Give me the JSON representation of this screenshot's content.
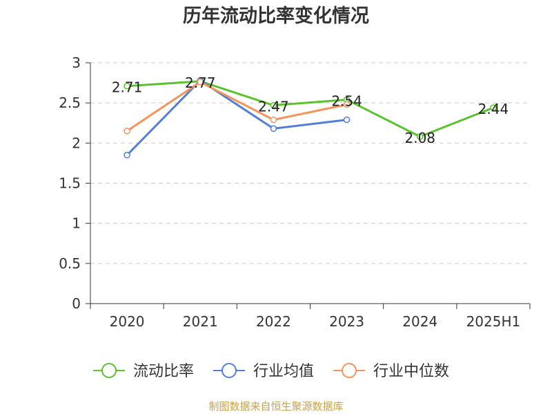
{
  "chart_data": {
    "type": "line",
    "title": "历年流动比率变化情况",
    "categories": [
      "2020",
      "2021",
      "2022",
      "2023",
      "2024",
      "2025H1"
    ],
    "ylim": [
      0,
      3
    ],
    "yticks": [
      "0",
      "0.5",
      "1",
      "1.5",
      "2",
      "2.5",
      "3"
    ],
    "grid": true,
    "legend_position": "bottom",
    "series": [
      {
        "name": "流动比率",
        "color": "#5ac22b",
        "values": [
          2.71,
          2.77,
          2.47,
          2.54,
          2.08,
          2.44
        ],
        "labels": [
          "2.71",
          "2.77",
          "2.47",
          "2.54",
          "2.08",
          "2.44"
        ]
      },
      {
        "name": "行业均值",
        "color": "#4f7fd8",
        "values": [
          1.85,
          2.78,
          2.18,
          2.29,
          null,
          null
        ]
      },
      {
        "name": "行业中位数",
        "color": "#f7935c",
        "values": [
          2.15,
          2.76,
          2.29,
          2.48,
          null,
          null
        ]
      }
    ]
  },
  "source_note": "制图数据来自恒生聚源数据库"
}
